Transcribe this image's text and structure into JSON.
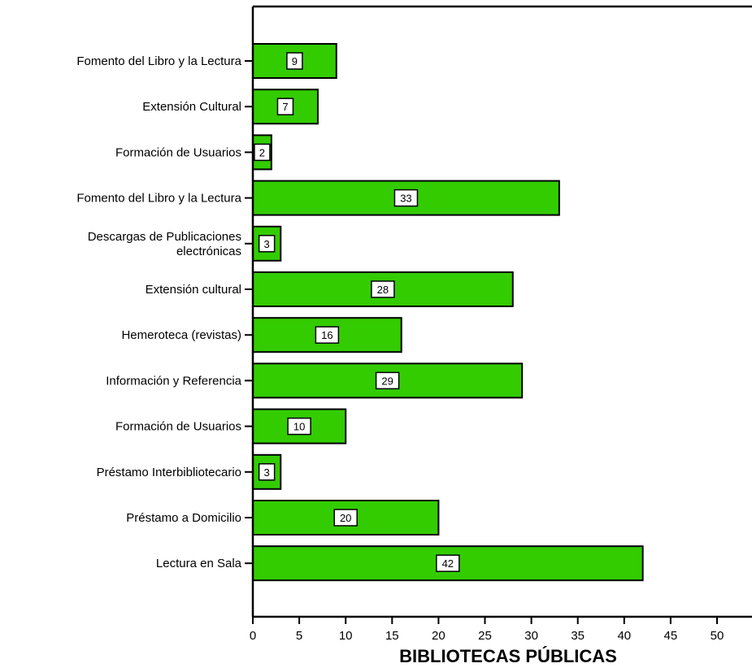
{
  "chart_data": {
    "type": "bar",
    "orientation": "horizontal",
    "categories": [
      "Fomento del Libro y la Lectura",
      "Extensión Cultural",
      "Formación de Usuarios",
      "Fomento del Libro y la Lectura",
      "Descargas de Publicaciones electrónicas",
      "Extensión cultural",
      "Hemeroteca (revistas)",
      "Información y Referencia",
      "Formación de Usuarios",
      "Préstamo Interbibliotecario",
      "Préstamo a Domicilio",
      "Lectura en Sala"
    ],
    "category_lines": [
      [
        "Fomento del Libro y la Lectura"
      ],
      [
        "Extensión Cultural"
      ],
      [
        "Formación de Usuarios"
      ],
      [
        "Fomento del Libro y la Lectura"
      ],
      [
        "Descargas de Publicaciones",
        "electrónicas"
      ],
      [
        "Extensión cultural"
      ],
      [
        "Hemeroteca (revistas)"
      ],
      [
        "Información y Referencia"
      ],
      [
        "Formación de Usuarios"
      ],
      [
        "Préstamo Interbibliotecario"
      ],
      [
        "Préstamo a Domicilio"
      ],
      [
        "Lectura en Sala"
      ]
    ],
    "values": [
      9,
      7,
      2,
      33,
      3,
      28,
      16,
      29,
      10,
      3,
      20,
      42
    ],
    "xlabel": "BIBLIOTECAS PÚBLICAS",
    "ylabel": "",
    "title": "",
    "xlim": [
      0,
      52
    ],
    "xticks": [
      0,
      5,
      10,
      15,
      20,
      25,
      30,
      35,
      40,
      45,
      50
    ],
    "grid": false,
    "legend": "none",
    "colors": {
      "bar_fill": "#33cc00",
      "bar_stroke": "#000000",
      "label_box_fill": "#ffffff"
    }
  }
}
